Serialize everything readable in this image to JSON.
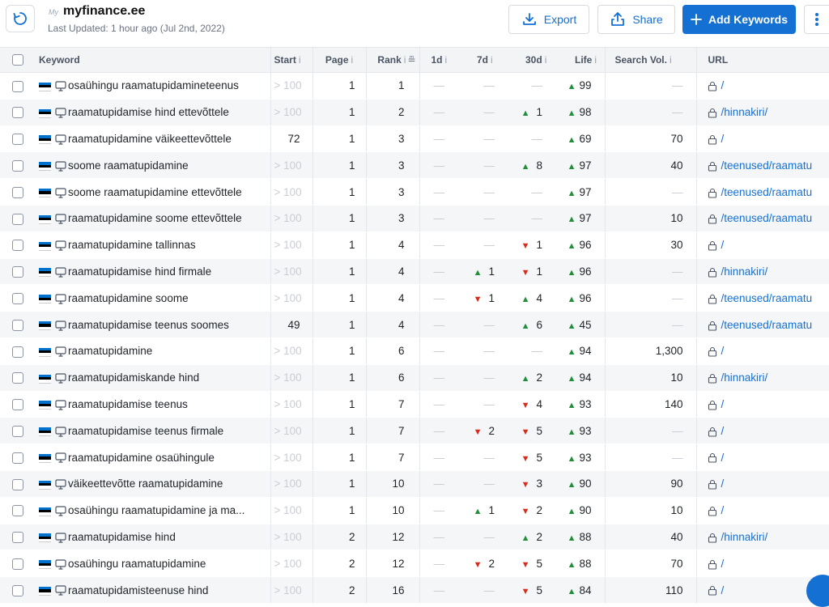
{
  "header": {
    "logo_text": "My",
    "site": "myfinance.ee",
    "updated": "Last Updated: 1 hour ago (Jul 2nd, 2022)",
    "export_label": "Export",
    "share_label": "Share",
    "add_label": "Add Keywords"
  },
  "columns": {
    "keyword": "Keyword",
    "start": "Start",
    "page": "Page",
    "rank": "Rank",
    "d1": "1d",
    "d7": "7d",
    "d30": "30d",
    "life": "Life",
    "volume": "Search Vol.",
    "url": "URL",
    "info_mark": "i"
  },
  "rows": [
    {
      "keyword": "osaühingu raamatupidamineteenus",
      "start": "> 100",
      "page": "1",
      "rank": "1",
      "d1": "—",
      "d7": "—",
      "d30": "—",
      "life": "99",
      "volume": "—",
      "url": "/"
    },
    {
      "keyword": "raamatupidamise hind ettevõttele",
      "start": "> 100",
      "page": "1",
      "rank": "2",
      "d1": "—",
      "d7": "—",
      "d30": "1",
      "d30_dir": "up",
      "life": "98",
      "volume": "—",
      "url": "/hinnakiri/"
    },
    {
      "keyword": "raamatupidamine väikeettevõttele",
      "start": "72",
      "page": "1",
      "rank": "3",
      "d1": "—",
      "d7": "—",
      "d30": "—",
      "life": "69",
      "volume": "70",
      "url": "/"
    },
    {
      "keyword": "soome raamatupidamine",
      "start": "> 100",
      "page": "1",
      "rank": "3",
      "d1": "—",
      "d7": "—",
      "d30": "8",
      "d30_dir": "up",
      "life": "97",
      "volume": "40",
      "url": "/teenused/raamatu"
    },
    {
      "keyword": "soome raamatupidamine ettevõttele",
      "start": "> 100",
      "page": "1",
      "rank": "3",
      "d1": "—",
      "d7": "—",
      "d30": "—",
      "life": "97",
      "volume": "—",
      "url": "/teenused/raamatu"
    },
    {
      "keyword": "raamatupidamine soome ettevõttele",
      "start": "> 100",
      "page": "1",
      "rank": "3",
      "d1": "—",
      "d7": "—",
      "d30": "—",
      "life": "97",
      "volume": "10",
      "url": "/teenused/raamatu"
    },
    {
      "keyword": "raamatupidamine tallinnas",
      "start": "> 100",
      "page": "1",
      "rank": "4",
      "d1": "—",
      "d7": "—",
      "d30": "1",
      "d30_dir": "down",
      "life": "96",
      "volume": "30",
      "url": "/"
    },
    {
      "keyword": "raamatupidamise hind firmale",
      "start": "> 100",
      "page": "1",
      "rank": "4",
      "d1": "—",
      "d7": "1",
      "d7_dir": "up",
      "d30": "1",
      "d30_dir": "down",
      "life": "96",
      "volume": "—",
      "url": "/hinnakiri/"
    },
    {
      "keyword": "raamatupidamine soome",
      "start": "> 100",
      "page": "1",
      "rank": "4",
      "d1": "—",
      "d7": "1",
      "d7_dir": "down",
      "d30": "4",
      "d30_dir": "up",
      "life": "96",
      "volume": "—",
      "url": "/teenused/raamatu"
    },
    {
      "keyword": "raamatupidamise teenus soomes",
      "start": "49",
      "page": "1",
      "rank": "4",
      "d1": "—",
      "d7": "—",
      "d30": "6",
      "d30_dir": "up",
      "life": "45",
      "volume": "—",
      "url": "/teenused/raamatu"
    },
    {
      "keyword": "raamatupidamine",
      "start": "> 100",
      "page": "1",
      "rank": "6",
      "d1": "—",
      "d7": "—",
      "d30": "—",
      "life": "94",
      "volume": "1,300",
      "url": "/"
    },
    {
      "keyword": "raamatupidamiskande hind",
      "start": "> 100",
      "page": "1",
      "rank": "6",
      "d1": "—",
      "d7": "—",
      "d30": "2",
      "d30_dir": "up",
      "life": "94",
      "volume": "10",
      "url": "/hinnakiri/"
    },
    {
      "keyword": "raamatupidamise teenus",
      "start": "> 100",
      "page": "1",
      "rank": "7",
      "d1": "—",
      "d7": "—",
      "d30": "4",
      "d30_dir": "down",
      "life": "93",
      "volume": "140",
      "url": "/"
    },
    {
      "keyword": "raamatupidamise teenus firmale",
      "start": "> 100",
      "page": "1",
      "rank": "7",
      "d1": "—",
      "d7": "2",
      "d7_dir": "down",
      "d30": "5",
      "d30_dir": "down",
      "life": "93",
      "volume": "—",
      "url": "/"
    },
    {
      "keyword": "raamatupidamine osaühingule",
      "start": "> 100",
      "page": "1",
      "rank": "7",
      "d1": "—",
      "d7": "—",
      "d30": "5",
      "d30_dir": "down",
      "life": "93",
      "volume": "—",
      "url": "/"
    },
    {
      "keyword": "väikeettevõtte raamatupidamine",
      "start": "> 100",
      "page": "1",
      "rank": "10",
      "d1": "—",
      "d7": "—",
      "d30": "3",
      "d30_dir": "down",
      "life": "90",
      "volume": "90",
      "url": "/"
    },
    {
      "keyword": "osaühingu raamatupidamine ja ma...",
      "start": "> 100",
      "page": "1",
      "rank": "10",
      "d1": "—",
      "d7": "1",
      "d7_dir": "up",
      "d30": "2",
      "d30_dir": "down",
      "life": "90",
      "volume": "10",
      "url": "/"
    },
    {
      "keyword": "raamatupidamise hind",
      "start": "> 100",
      "page": "2",
      "rank": "12",
      "d1": "—",
      "d7": "—",
      "d30": "2",
      "d30_dir": "up",
      "life": "88",
      "volume": "40",
      "url": "/hinnakiri/"
    },
    {
      "keyword": "osaühingu raamatupidamine",
      "start": "> 100",
      "page": "2",
      "rank": "12",
      "d1": "—",
      "d7": "2",
      "d7_dir": "down",
      "d30": "5",
      "d30_dir": "down",
      "life": "88",
      "volume": "70",
      "url": "/"
    },
    {
      "keyword": "raamatupidamisteenuse hind",
      "start": "> 100",
      "page": "2",
      "rank": "16",
      "d1": "—",
      "d7": "—",
      "d30": "5",
      "d30_dir": "down",
      "life": "84",
      "volume": "110",
      "url": "/"
    }
  ],
  "colors": {
    "accent": "#1570d4",
    "up": "#1f8f3a",
    "down": "#d92a1c",
    "flag": [
      "#0072ce",
      "#000000",
      "#ffffff"
    ]
  },
  "icons": {
    "refresh": "refresh-icon",
    "export": "download-icon",
    "share": "share-icon",
    "add": "plus-icon",
    "more": "kebab-icon",
    "device": "desktop-icon",
    "lock": "lock-icon",
    "flag": "estonia-flag-icon"
  }
}
